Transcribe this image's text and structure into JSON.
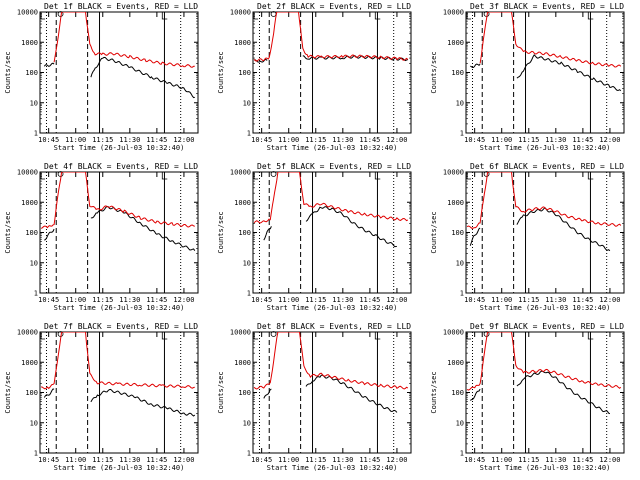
{
  "chart_data": {
    "type": "line",
    "layout": "3x3 grid",
    "colors": {
      "events": "#000000",
      "lld": "#e00000",
      "frame": "#000000"
    },
    "legend": "BLACK = Events, RED = LLD",
    "shared": {
      "xlabel": "Start Time (26-Jul-03 10:32:40)",
      "ylabel": "Counts/sec",
      "xlim": [
        10.67,
        12.13
      ],
      "x_ticks": [
        10.75,
        11.0,
        11.25,
        11.5,
        11.75,
        12.0
      ],
      "x_tick_labels": [
        "10:45",
        "11:00",
        "11:15",
        "11:30",
        "11:45",
        "12:00"
      ],
      "yscale": "log",
      "ylim": [
        1,
        10000
      ],
      "y_ticks": [
        1,
        10,
        100,
        1000,
        10000
      ],
      "y_tick_labels": [
        "1",
        "10",
        "100",
        "1000",
        "10000"
      ],
      "vlines": [
        {
          "x": 10.73,
          "style": "dotted"
        },
        {
          "x": 10.82,
          "style": "dashed"
        },
        {
          "x": 11.11,
          "style": "dashed"
        },
        {
          "x": 11.22,
          "style": "solid"
        },
        {
          "x": 11.82,
          "style": "solid"
        },
        {
          "x": 11.97,
          "style": "dotted"
        }
      ]
    },
    "panels": [
      {
        "title": "Det 1f BLACK = Events, RED = LLD",
        "series": [
          {
            "name": "Events",
            "color": "#000000",
            "segments": [
              {
                "x": [
                  10.71,
                  10.74,
                  10.77,
                  10.8
                ],
                "y": [
                  160,
                  170,
                  180,
                  190
                ]
              },
              {
                "x": [
                  11.14,
                  11.18,
                  11.25,
                  11.35,
                  11.5,
                  11.7,
                  11.85,
                  12.0,
                  12.1
                ],
                "y": [
                  70,
                  140,
                  300,
                  250,
                  150,
                  70,
                  45,
                  30,
                  15
                ]
              }
            ]
          },
          {
            "name": "LLD",
            "color": "#e00000",
            "segments": [
              {
                "x": [
                  10.8,
                  10.84,
                  10.87,
                  11.09,
                  11.13,
                  11.18,
                  11.25,
                  11.35,
                  11.5,
                  11.65,
                  11.8,
                  12.0,
                  12.1
                ],
                "y": [
                  200,
                  1800,
                  10000,
                  10000,
                  800,
                  420,
                  400,
                  420,
                  330,
                  250,
                  200,
                  170,
                  160
                ]
              }
            ]
          }
        ]
      },
      {
        "title": "Det 2f BLACK = Events, RED = LLD",
        "series": [
          {
            "name": "Events",
            "color": "#000000",
            "segments": [
              {
                "x": [
                  10.68,
                  10.75,
                  10.8
                ],
                "y": [
                  240,
                  240,
                  250
                ]
              },
              {
                "x": [
                  11.13,
                  11.18,
                  11.3,
                  11.5,
                  11.6,
                  11.7,
                  11.85,
                  12.0,
                  12.1
                ],
                "y": [
                  330,
                  300,
                  300,
                  310,
                  330,
                  320,
                  300,
                  280,
                  270
                ]
              }
            ]
          },
          {
            "name": "LLD",
            "color": "#e00000",
            "segments": [
              {
                "x": [
                  10.68,
                  10.77,
                  10.82,
                  10.86,
                  10.89,
                  11.09,
                  11.13,
                  11.18,
                  11.3,
                  11.5,
                  11.6,
                  11.7,
                  11.85,
                  12.0,
                  12.1
                ],
                "y": [
                  260,
                  260,
                  300,
                  2000,
                  10000,
                  10000,
                  600,
                  340,
                  330,
                  340,
                  350,
                  340,
                  320,
                  290,
                  270
                ]
              }
            ]
          }
        ]
      },
      {
        "title": "Det 3f BLACK = Events, RED = LLD",
        "series": [
          {
            "name": "Events",
            "color": "#000000",
            "segments": [
              {
                "x": [
                  10.71,
                  10.74,
                  10.77,
                  10.8
                ],
                "y": [
                  150,
                  160,
                  175,
                  190
                ]
              },
              {
                "x": [
                  11.14,
                  11.2,
                  11.3,
                  11.4,
                  11.55,
                  11.7,
                  11.85,
                  12.0,
                  12.1
                ],
                "y": [
                  60,
                  120,
                  350,
                  280,
                  200,
                  110,
                  60,
                  35,
                  25
                ]
              }
            ]
          },
          {
            "name": "LLD",
            "color": "#e00000",
            "segments": [
              {
                "x": [
                  10.8,
                  10.84,
                  10.87,
                  11.09,
                  11.13,
                  11.2,
                  11.3,
                  11.4,
                  11.55,
                  11.7,
                  11.85,
                  12.0,
                  12.1
                ],
                "y": [
                  210,
                  2000,
                  10000,
                  10000,
                  900,
                  480,
                  450,
                  420,
                  330,
                  250,
                  200,
                  170,
                  160
                ]
              }
            ]
          }
        ]
      },
      {
        "title": "Det 4f BLACK = Events, RED = LLD",
        "series": [
          {
            "name": "Events",
            "color": "#000000",
            "segments": [
              {
                "x": [
                  10.71,
                  10.74,
                  10.77,
                  10.8
                ],
                "y": [
                  55,
                  80,
                  100,
                  130
                ]
              },
              {
                "x": [
                  11.14,
                  11.2,
                  11.3,
                  11.45,
                  11.6,
                  11.75,
                  11.9,
                  12.0,
                  12.1
                ],
                "y": [
                  300,
                  450,
                  700,
                  450,
                  200,
                  90,
                  50,
                  35,
                  25
                ]
              }
            ]
          },
          {
            "name": "LLD",
            "color": "#e00000",
            "segments": [
              {
                "x": [
                  10.68,
                  10.75,
                  10.8,
                  10.84,
                  10.87,
                  11.09,
                  11.13,
                  11.2,
                  11.3,
                  11.45,
                  11.6,
                  11.75,
                  11.9,
                  12.0,
                  12.1
                ],
                "y": [
                  150,
                  150,
                  200,
                  2000,
                  10000,
                  10000,
                  800,
                  550,
                  750,
                  500,
                  300,
                  220,
                  190,
                  170,
                  160
                ]
              }
            ]
          }
        ]
      },
      {
        "title": "Det 5f BLACK = Events, RED = LLD",
        "series": [
          {
            "name": "Events",
            "color": "#000000",
            "segments": [
              {
                "x": [
                  10.77,
                  10.8,
                  10.84
                ],
                "y": [
                  60,
                  100,
                  160
                ]
              },
              {
                "x": [
                  11.16,
                  11.22,
                  11.3,
                  11.4,
                  11.5,
                  11.6,
                  11.7,
                  11.8,
                  11.9,
                  12.0
                ],
                "y": [
                  250,
                  400,
                  700,
                  600,
                  400,
                  200,
                  120,
                  80,
                  50,
                  35
                ]
              }
            ]
          },
          {
            "name": "LLD",
            "color": "#e00000",
            "segments": [
              {
                "x": [
                  10.68,
                  10.77,
                  10.83,
                  10.87,
                  10.9,
                  11.1,
                  11.14,
                  11.2,
                  11.3,
                  11.4,
                  11.55,
                  11.7,
                  11.85,
                  12.0,
                  12.1
                ],
                "y": [
                  220,
                  230,
                  280,
                  2000,
                  10000,
                  10000,
                  900,
                  700,
                  900,
                  700,
                  500,
                  400,
                  330,
                  280,
                  260
                ]
              }
            ]
          }
        ]
      },
      {
        "title": "Det 6f BLACK = Events, RED = LLD",
        "series": [
          {
            "name": "Events",
            "color": "#000000",
            "segments": [
              {
                "x": [
                  10.71,
                  10.74,
                  10.77,
                  10.8
                ],
                "y": [
                  40,
                  70,
                  100,
                  140
                ]
              },
              {
                "x": [
                  11.14,
                  11.2,
                  11.3,
                  11.4,
                  11.5,
                  11.6,
                  11.7,
                  11.8,
                  11.9,
                  12.0
                ],
                "y": [
                  200,
                  350,
                  500,
                  600,
                  400,
                  200,
                  100,
                  60,
                  40,
                  25
                ]
              }
            ]
          },
          {
            "name": "LLD",
            "color": "#e00000",
            "segments": [
              {
                "x": [
                  10.68,
                  10.75,
                  10.8,
                  10.84,
                  10.87,
                  11.09,
                  11.13,
                  11.2,
                  11.3,
                  11.4,
                  11.5,
                  11.6,
                  11.75,
                  11.9,
                  12.1
                ],
                "y": [
                  150,
                  150,
                  200,
                  2000,
                  10000,
                  10000,
                  700,
                  500,
                  600,
                  650,
                  500,
                  350,
                  250,
                  200,
                  170
                ]
              }
            ]
          }
        ]
      },
      {
        "title": "Det 7f BLACK = Events, RED = LLD",
        "series": [
          {
            "name": "Events",
            "color": "#000000",
            "segments": [
              {
                "x": [
                  10.71,
                  10.74,
                  10.77,
                  10.8
                ],
                "y": [
                  70,
                  80,
                  100,
                  130
                ]
              },
              {
                "x": [
                  11.14,
                  11.2,
                  11.3,
                  11.4,
                  11.55,
                  11.7,
                  11.85,
                  12.0,
                  12.1
                ],
                "y": [
                  50,
                  80,
                  120,
                  100,
                  70,
                  40,
                  30,
                  20,
                  18
                ]
              }
            ]
          },
          {
            "name": "LLD",
            "color": "#e00000",
            "segments": [
              {
                "x": [
                  10.68,
                  10.75,
                  10.8,
                  10.84,
                  10.87,
                  11.09,
                  11.13,
                  11.2,
                  11.4,
                  11.6,
                  11.8,
                  12.0,
                  12.1
                ],
                "y": [
                  140,
                  150,
                  180,
                  2000,
                  10000,
                  10000,
                  400,
                  210,
                  190,
                  180,
                  165,
                  160,
                  150
                ]
              }
            ]
          }
        ]
      },
      {
        "title": "Det 8f BLACK = Events, RED = LLD",
        "series": [
          {
            "name": "Events",
            "color": "#000000",
            "segments": [
              {
                "x": [
                  10.77,
                  10.8,
                  10.84
                ],
                "y": [
                  60,
                  90,
                  130
                ]
              },
              {
                "x": [
                  11.16,
                  11.22,
                  11.3,
                  11.4,
                  11.5,
                  11.6,
                  11.7,
                  11.8,
                  11.9,
                  12.0
                ],
                "y": [
                  150,
                  250,
                  350,
                  300,
                  200,
                  120,
                  70,
                  45,
                  30,
                  22
                ]
              }
            ]
          },
          {
            "name": "LLD",
            "color": "#e00000",
            "segments": [
              {
                "x": [
                  10.68,
                  10.77,
                  10.83,
                  10.87,
                  10.9,
                  11.1,
                  11.14,
                  11.2,
                  11.3,
                  11.4,
                  11.55,
                  11.7,
                  11.85,
                  12.0,
                  12.1
                ],
                "y": [
                  140,
                  150,
                  200,
                  2000,
                  10000,
                  10000,
                  700,
                  350,
                  400,
                  330,
                  250,
                  200,
                  170,
                  150,
                  140
                ]
              }
            ]
          }
        ]
      },
      {
        "title": "Det 9f BLACK = Events, RED = LLD",
        "series": [
          {
            "name": "Events",
            "color": "#000000",
            "segments": [
              {
                "x": [
                  10.71,
                  10.74,
                  10.77,
                  10.8
                ],
                "y": [
                  50,
                  70,
                  95,
                  130
                ]
              },
              {
                "x": [
                  11.14,
                  11.2,
                  11.3,
                  11.4,
                  11.5,
                  11.6,
                  11.7,
                  11.8,
                  11.9,
                  12.0
                ],
                "y": [
                  150,
                  300,
                  400,
                  500,
                  300,
                  150,
                  80,
                  50,
                  30,
                  20
                ]
              }
            ]
          },
          {
            "name": "LLD",
            "color": "#e00000",
            "segments": [
              {
                "x": [
                  10.68,
                  10.75,
                  10.8,
                  10.84,
                  10.87,
                  11.09,
                  11.13,
                  11.2,
                  11.3,
                  11.4,
                  11.5,
                  11.6,
                  11.75,
                  11.9,
                  12.1
                ],
                "y": [
                  130,
                  140,
                  200,
                  2000,
                  10000,
                  10000,
                  800,
                  450,
                  500,
                  550,
                  450,
                  330,
                  230,
                  180,
                  150
                ]
              }
            ]
          }
        ]
      }
    ]
  }
}
